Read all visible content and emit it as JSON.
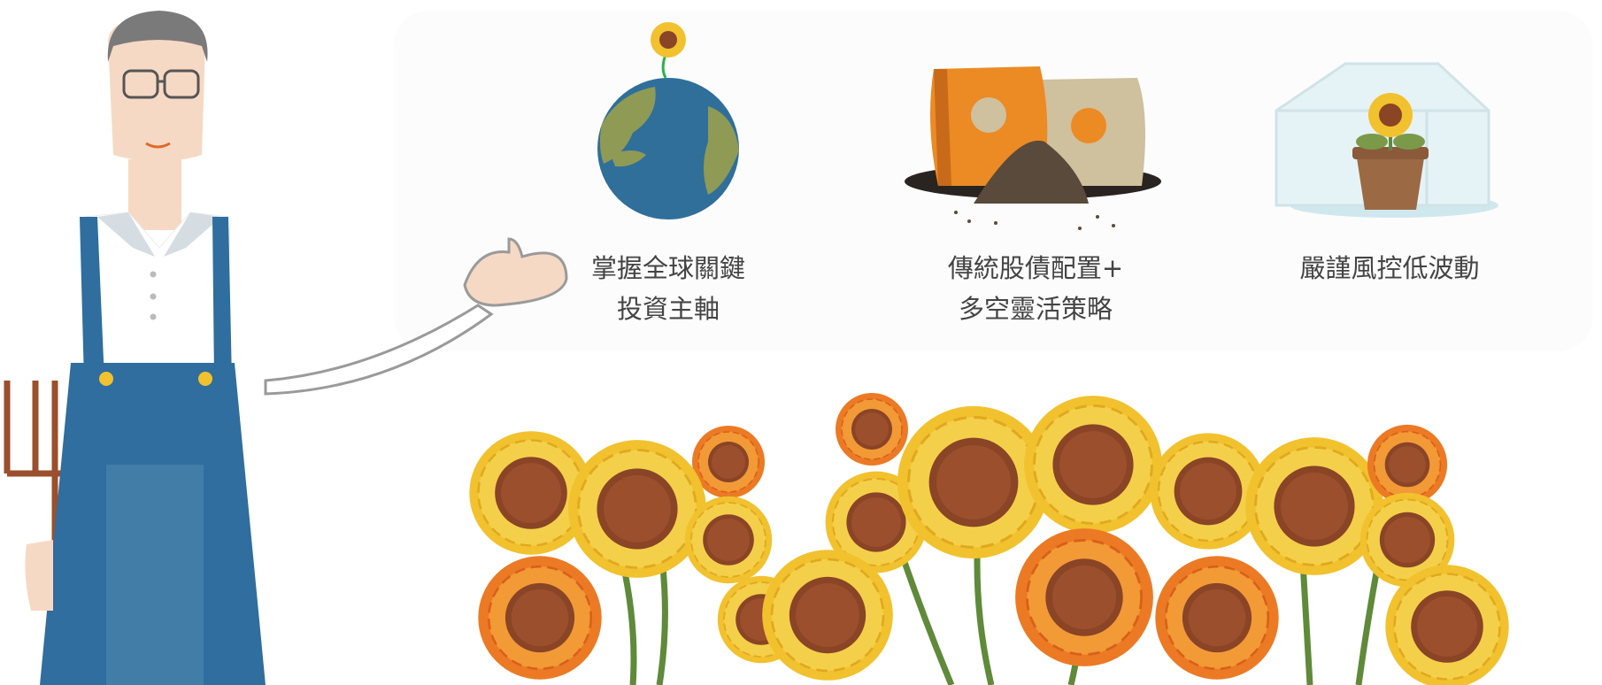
{
  "features": [
    {
      "line1": "掌握全球關鍵",
      "line2": "投資主軸",
      "icon": "globe-sunflower-icon"
    },
    {
      "line1": "傳統股債配置+",
      "line2": "多空靈活策略",
      "icon": "soil-bags-icon"
    },
    {
      "line1": "嚴謹風控低波動",
      "line2": "",
      "icon": "greenhouse-sunflower-icon"
    }
  ],
  "colors": {
    "overalls": "#2f6e9e",
    "skin": "#f6d9c4",
    "petal_yellow": "#f2c12e",
    "petal_orange": "#ec7a24",
    "seed_brown": "#8a4426",
    "stem_green": "#5f8a3a",
    "ocean": "#2f6f9a",
    "land": "#8f9a55"
  }
}
